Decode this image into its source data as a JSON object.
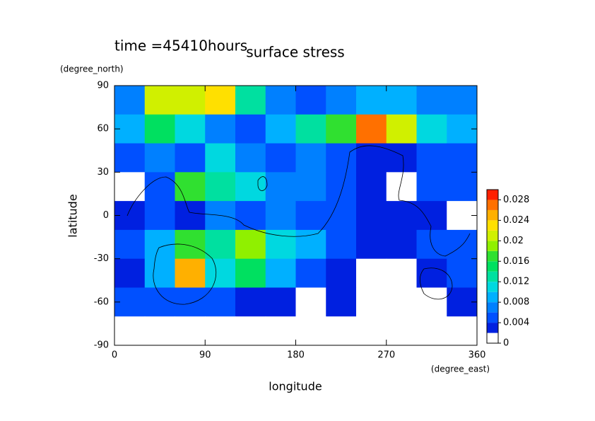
{
  "chart_data": {
    "type": "contour",
    "time_label": "time =45410hours",
    "title": "surface stress",
    "y_unit": "(degree_north)",
    "y_label": "latitude",
    "x_label": "longitude",
    "x_unit": "(degree_east)",
    "x": [
      15,
      45,
      75,
      105,
      135,
      165,
      195,
      225,
      255,
      285,
      315,
      345
    ],
    "y": [
      80,
      60,
      40,
      20,
      0,
      -20,
      -40,
      -60,
      -80
    ],
    "z": [
      [
        0.006,
        0.02,
        0.02,
        0.022,
        0.012,
        0.006,
        0.004,
        0.006,
        0.008,
        0.008,
        0.006,
        0.006
      ],
      [
        0.008,
        0.014,
        0.01,
        0.006,
        0.004,
        0.008,
        0.012,
        0.016,
        0.026,
        0.02,
        0.01,
        0.008
      ],
      [
        0.004,
        0.006,
        0.004,
        0.01,
        0.006,
        0.005,
        0.006,
        0.004,
        0.002,
        0.003,
        0.004,
        0.004
      ],
      [
        0.001,
        0.004,
        0.016,
        0.012,
        0.01,
        0.006,
        0.006,
        0.004,
        0.002,
        0.001,
        0.004,
        0.004
      ],
      [
        0.003,
        0.004,
        0.002,
        0.006,
        0.004,
        0.006,
        0.004,
        0.004,
        0.002,
        0.002,
        0.003,
        0.001
      ],
      [
        0.004,
        0.008,
        0.016,
        0.012,
        0.018,
        0.01,
        0.008,
        0.004,
        0.003,
        0.002,
        0.004,
        0.004
      ],
      [
        0.003,
        0.008,
        0.024,
        0.01,
        0.014,
        0.008,
        0.004,
        0.002,
        0.001,
        0.001,
        0.003,
        0.004
      ],
      [
        0.004,
        0.004,
        0.004,
        0.004,
        0.003,
        0.002,
        0.001,
        0.002,
        0.001,
        0.001,
        0.001,
        0.002
      ],
      [
        0,
        0,
        0,
        0,
        0,
        0,
        0,
        0,
        0,
        0,
        0,
        0
      ]
    ],
    "xlim": [
      0,
      360
    ],
    "xticks": [
      0,
      90,
      180,
      270,
      360
    ],
    "ylim": [
      -90,
      90
    ],
    "yticks": [
      -90,
      -60,
      -30,
      0,
      30,
      60,
      90
    ],
    "levels": [
      0,
      0.002,
      0.004,
      0.006,
      0.008,
      0.01,
      0.012,
      0.014,
      0.016,
      0.018,
      0.02,
      0.022,
      0.024,
      0.026,
      0.028,
      0.03
    ],
    "colors": [
      "#ffffff",
      "#0020e0",
      "#0050ff",
      "#0080ff",
      "#00b0ff",
      "#00d8e0",
      "#00e0a0",
      "#00e060",
      "#30e030",
      "#90f000",
      "#d0f000",
      "#ffe000",
      "#ffb000",
      "#ff7000",
      "#ff2000"
    ],
    "cticks": [
      0,
      0.004,
      0.008,
      0.012,
      0.016,
      0.02,
      0.024,
      0.028
    ]
  }
}
